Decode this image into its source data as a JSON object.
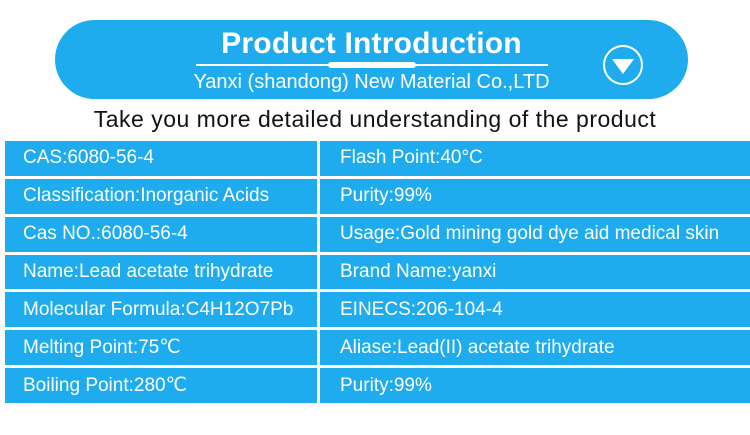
{
  "banner": {
    "title": "Product Introduction",
    "company": "Yanxi (shandong) New Material Co.,LTD"
  },
  "subtitle": "Take you more detailed understanding of the product",
  "icons": {
    "scroll_down": "triangle-down-icon"
  },
  "colors": {
    "accent_blue": "#1EACEF",
    "banner_text": "#ffffff",
    "subtitle_text": "#121212",
    "separator": "#ffffff"
  },
  "table": {
    "rows": [
      {
        "left": "CAS:6080-56-4",
        "right": "Flash Point:40°C"
      },
      {
        "left": "Classification:Inorganic Acids",
        "right": "Purity:99%"
      },
      {
        "left": "Cas NO.:6080-56-4",
        "right": "Usage:Gold mining gold dye aid medical skin"
      },
      {
        "left": "Name:Lead acetate trihydrate",
        "right": "Brand Name:yanxi"
      },
      {
        "left": "Molecular Formula:C4H12O7Pb",
        "right": "EINECS:206-104-4"
      },
      {
        "left": "Melting Point:75℃",
        "right": "Aliase:Lead(II) acetate trihydrate"
      },
      {
        "left": "Boiling Point:280℃",
        "right": "Purity:99%"
      }
    ]
  }
}
